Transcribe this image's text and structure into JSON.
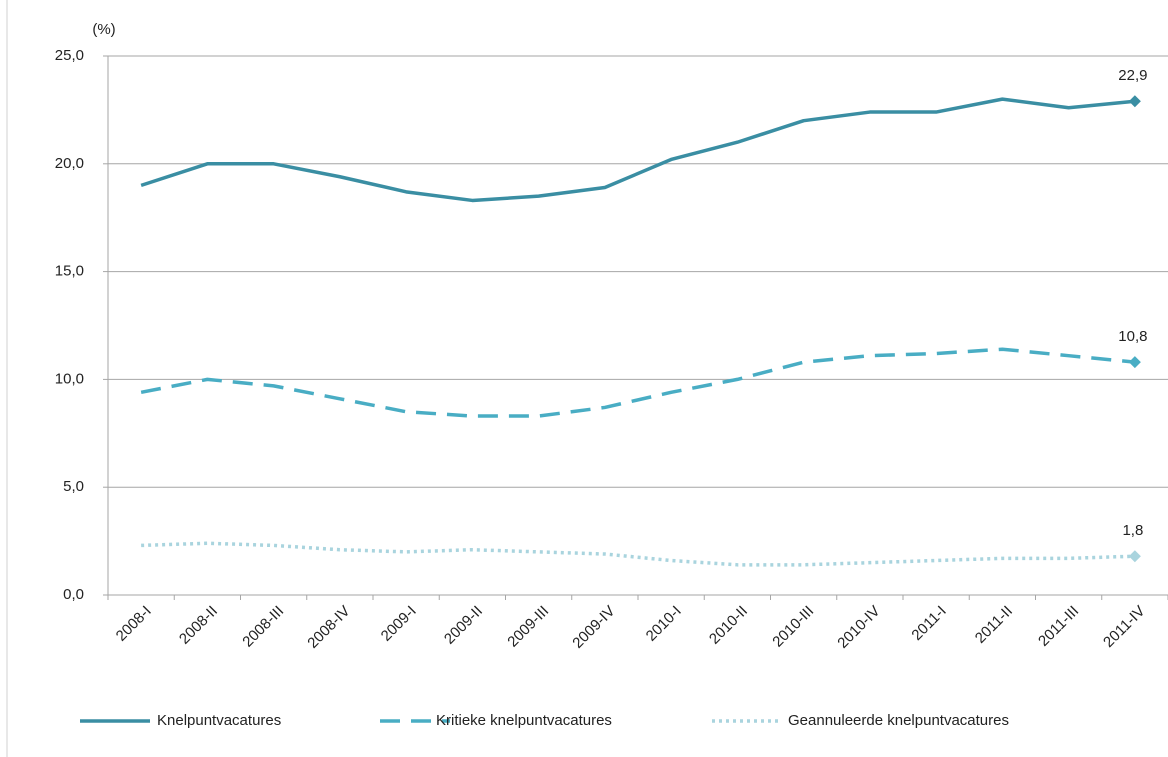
{
  "chart_data": {
    "type": "line",
    "y_label": "(%)",
    "categories": [
      "2008-I",
      "2008-II",
      "2008-III",
      "2008-IV",
      "2009-I",
      "2009-II",
      "2009-III",
      "2009-IV",
      "2010-I",
      "2010-II",
      "2010-III",
      "2010-IV",
      "2011-I",
      "2011-II",
      "2011-III",
      "2011-IV"
    ],
    "ylim": [
      0,
      25
    ],
    "yticks": [
      {
        "value": 0,
        "label": "0,0"
      },
      {
        "value": 5,
        "label": "5,0"
      },
      {
        "value": 10,
        "label": "10,0"
      },
      {
        "value": 15,
        "label": "15,0"
      },
      {
        "value": 20,
        "label": "20,0"
      },
      {
        "value": 25,
        "label": "25,0"
      }
    ],
    "grid": true,
    "legend": "bottom",
    "series": [
      {
        "name": "Knelpuntvacatures",
        "color": "#3a8ea3",
        "dash": "solid",
        "values": [
          19.0,
          20.0,
          20.0,
          19.4,
          18.7,
          18.3,
          18.5,
          18.9,
          20.2,
          21.0,
          22.0,
          22.4,
          22.4,
          23.0,
          22.6,
          22.9
        ],
        "value_labels": [
          null,
          null,
          null,
          null,
          null,
          null,
          null,
          null,
          null,
          null,
          null,
          null,
          null,
          null,
          null,
          "22,9"
        ]
      },
      {
        "name": "Kritieke knelpuntvacatures",
        "color": "#49adc4",
        "dash": "dashed",
        "values": [
          9.4,
          10.0,
          9.7,
          9.1,
          8.5,
          8.3,
          8.3,
          8.7,
          9.4,
          10.0,
          10.8,
          11.1,
          11.2,
          11.4,
          11.1,
          10.8
        ],
        "value_labels": [
          null,
          null,
          null,
          null,
          null,
          null,
          null,
          null,
          null,
          null,
          null,
          null,
          null,
          null,
          null,
          "10,8"
        ]
      },
      {
        "name": "Geannuleerde knelpuntvacatures",
        "color": "#a9d4de",
        "dash": "dotted",
        "values": [
          2.3,
          2.4,
          2.3,
          2.1,
          2.0,
          2.1,
          2.0,
          1.9,
          1.6,
          1.4,
          1.4,
          1.5,
          1.6,
          1.7,
          1.7,
          1.8
        ],
        "value_labels": [
          null,
          null,
          null,
          null,
          null,
          null,
          null,
          null,
          null,
          null,
          null,
          null,
          null,
          null,
          null,
          "1,8"
        ]
      }
    ]
  }
}
